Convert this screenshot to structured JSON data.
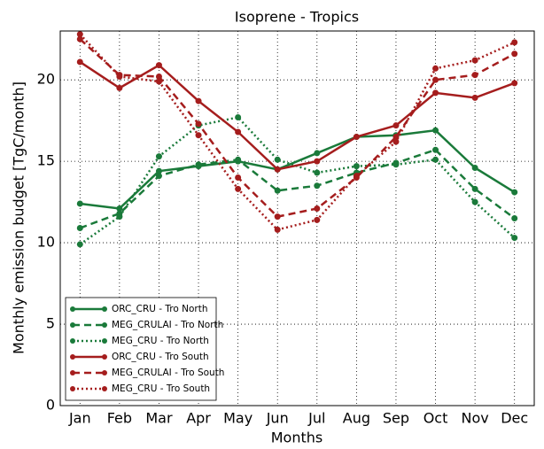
{
  "chart_data": {
    "type": "line",
    "title": "Isoprene - Tropics",
    "x_label": "Months",
    "y_label": "Monthly emission budget [TgC/month]",
    "categories": [
      "Jan",
      "Feb",
      "Mar",
      "Apr",
      "May",
      "Jun",
      "Jul",
      "Aug",
      "Sep",
      "Oct",
      "Nov",
      "Dec"
    ],
    "ylim": [
      0,
      23
    ],
    "yticks": [
      0,
      5,
      10,
      15,
      20
    ],
    "grid": true,
    "legend": "lower left",
    "series": [
      {
        "name": "ORC_CRU - Tro North",
        "color": "#1a7a3a",
        "linestyle": "solid",
        "values": [
          12.4,
          12.1,
          14.4,
          14.7,
          15.0,
          14.5,
          15.5,
          16.5,
          16.6,
          16.9,
          14.6,
          13.1
        ]
      },
      {
        "name": "MEG_CRULAI - Tro North",
        "color": "#1a7a3a",
        "linestyle": "dashed",
        "values": [
          10.9,
          11.8,
          14.1,
          14.8,
          15.1,
          13.2,
          13.5,
          14.3,
          14.9,
          15.7,
          13.3,
          11.5
        ]
      },
      {
        "name": "MEG_CRU - Tro North",
        "color": "#1a7a3a",
        "linestyle": "dotted",
        "values": [
          9.9,
          11.6,
          15.3,
          17.2,
          17.7,
          15.1,
          14.3,
          14.7,
          14.8,
          15.1,
          12.5,
          10.3
        ]
      },
      {
        "name": "ORC_CRU - Tro South",
        "color": "#a51d1d",
        "linestyle": "solid",
        "values": [
          21.1,
          19.5,
          20.9,
          18.7,
          16.8,
          14.5,
          15.0,
          16.5,
          17.2,
          19.2,
          18.9,
          19.8
        ]
      },
      {
        "name": "MEG_CRULAI - Tro South",
        "color": "#a51d1d",
        "linestyle": "dashed",
        "values": [
          22.5,
          20.3,
          20.2,
          17.3,
          14.0,
          11.6,
          12.1,
          14.0,
          16.5,
          20.0,
          20.3,
          21.6
        ]
      },
      {
        "name": "MEG_CRU - Tro South",
        "color": "#a51d1d",
        "linestyle": "dotted",
        "values": [
          22.8,
          20.2,
          19.9,
          16.6,
          13.3,
          10.8,
          11.4,
          14.1,
          16.2,
          20.7,
          21.2,
          22.3
        ]
      }
    ]
  }
}
